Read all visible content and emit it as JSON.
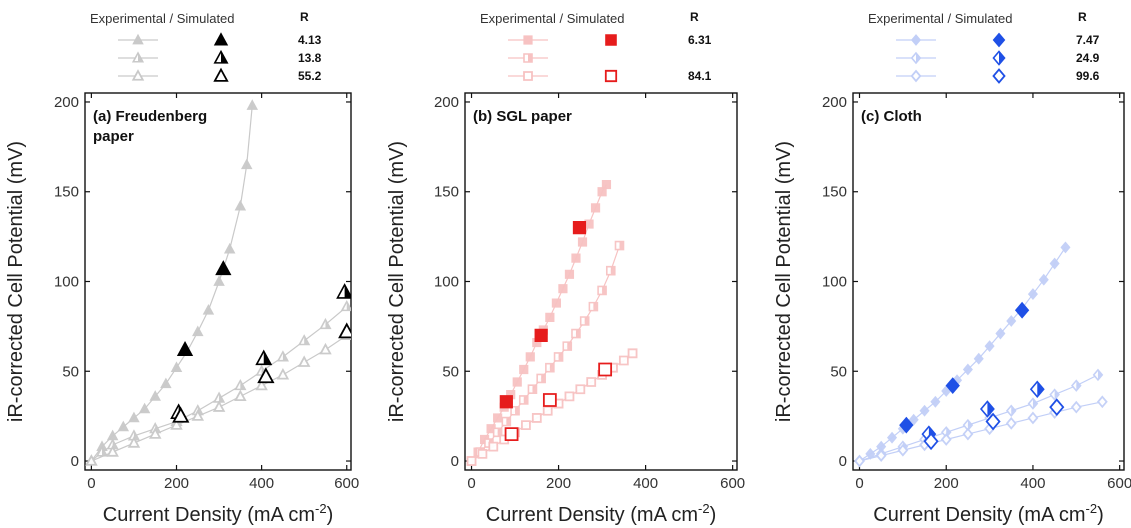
{
  "chart_data": [
    {
      "type": "scatter",
      "title": "(a) Freudenberg",
      "title_line2": "paper",
      "xlabel": "Current Density (mA cm",
      "xlabel_sup": "-2",
      "xlabel_close": ")",
      "ylabel": "iR-corrected Cell Potential (mV)",
      "xlim": [
        -15,
        610
      ],
      "ylim": [
        -5,
        205
      ],
      "xticks": [
        0,
        200,
        400,
        600
      ],
      "yticks": [
        0,
        50,
        100,
        150,
        200
      ],
      "marker": "triangle",
      "color": "#000000",
      "light_color": "#c9c9c9",
      "legend_title": "Experimental / Simulated",
      "legend_head": "R",
      "series": [
        {
          "legend_value": "4.13",
          "fill": "full",
          "experimental": {
            "x": [
              0,
              25,
              50,
              75,
              100,
              125,
              150,
              175,
              200,
              225,
              250,
              275,
              300,
              325,
              350,
              365,
              378
            ],
            "y": [
              0,
              8,
              14,
              19,
              24,
              29,
              36,
              43,
              52,
              61,
              72,
              84,
              100,
              118,
              142,
              165,
              198
            ]
          },
          "simulated": {
            "x": [
              220,
              310
            ],
            "y": [
              62,
              107
            ]
          }
        },
        {
          "legend_value": "13.8",
          "fill": "half",
          "experimental": {
            "x": [
              0,
              25,
              50,
              100,
              150,
              200,
              250,
              300,
              350,
              400,
              450,
              500,
              550,
              600
            ],
            "y": [
              0,
              5,
              9,
              14,
              18,
              22,
              28,
              35,
              42,
              50,
              58,
              67,
              76,
              86
            ]
          },
          "simulated": {
            "x": [
              205,
              405,
              595
            ],
            "y": [
              27,
              57,
              94
            ]
          }
        },
        {
          "legend_value": "55.2",
          "fill": "open",
          "experimental": {
            "x": [
              0,
              50,
              100,
              150,
              200,
              250,
              300,
              350,
              400,
              450,
              500,
              550,
              600
            ],
            "y": [
              0,
              5,
              10,
              15,
              20,
              25,
              30,
              36,
              42,
              48,
              55,
              62,
              70
            ]
          },
          "simulated": {
            "x": [
              210,
              410,
              600
            ],
            "y": [
              25,
              47,
              72
            ]
          }
        }
      ]
    },
    {
      "type": "scatter",
      "title": "(b) SGL paper",
      "title_line2": "",
      "xlabel": "Current Density (mA cm",
      "xlabel_sup": "-2",
      "xlabel_close": ")",
      "ylabel": "iR-corrected Cell Potential (mV)",
      "xlim": [
        -15,
        610
      ],
      "ylim": [
        -5,
        205
      ],
      "xticks": [
        0,
        200,
        400,
        600
      ],
      "yticks": [
        0,
        50,
        100,
        150,
        200
      ],
      "marker": "square",
      "color": "#e61c1c",
      "light_color": "#f7c2c2",
      "legend_title": "Experimental / Simulated",
      "legend_head": "R",
      "series": [
        {
          "legend_value": "6.31",
          "fill": "full",
          "experimental": {
            "x": [
              0,
              15,
              30,
              45,
              60,
              75,
              90,
              105,
              120,
              135,
              150,
              165,
              180,
              195,
              210,
              225,
              240,
              255,
              270,
              285,
              300,
              310
            ],
            "y": [
              0,
              5,
              12,
              18,
              24,
              30,
              37,
              44,
              51,
              58,
              66,
              73,
              80,
              88,
              96,
              104,
              113,
              122,
              132,
              141,
              150,
              154
            ]
          },
          "simulated": {
            "x": [
              80,
              160,
              248
            ],
            "y": [
              33,
              70,
              130
            ]
          }
        },
        {
          "legend_value": "",
          "fill": "half",
          "experimental": {
            "x": [
              0,
              20,
              40,
              60,
              80,
              100,
              120,
              140,
              160,
              180,
              200,
              220,
              240,
              260,
              280,
              300,
              320,
              340
            ],
            "y": [
              0,
              5,
              10,
              16,
              22,
              28,
              34,
              40,
              46,
              52,
              58,
              64,
              71,
              78,
              86,
              95,
              106,
              120
            ]
          },
          "simulated": {
            "x": [],
            "y": []
          }
        },
        {
          "legend_value": "84.1",
          "fill": "open",
          "experimental": {
            "x": [
              0,
              25,
              50,
              75,
              100,
              125,
              150,
              175,
              200,
              225,
              250,
              275,
              300,
              325,
              350,
              370
            ],
            "y": [
              0,
              4,
              8,
              12,
              16,
              20,
              24,
              28,
              32,
              36,
              40,
              44,
              48,
              52,
              56,
              60
            ]
          },
          "simulated": {
            "x": [
              92,
              180,
              307
            ],
            "y": [
              15,
              34,
              51
            ]
          }
        }
      ]
    },
    {
      "type": "scatter",
      "title": "(c) Cloth",
      "title_line2": "",
      "xlabel": "Current Density (mA cm",
      "xlabel_sup": "-2",
      "xlabel_close": ")",
      "ylabel": "iR-corrected Cell Potential (mV)",
      "xlim": [
        -15,
        610
      ],
      "ylim": [
        -5,
        205
      ],
      "xticks": [
        0,
        200,
        400,
        600
      ],
      "yticks": [
        0,
        50,
        100,
        150,
        200
      ],
      "marker": "diamond",
      "color": "#1f50e6",
      "light_color": "#c2cff7",
      "legend_title": "Experimental / Simulated",
      "legend_head": "R",
      "series": [
        {
          "legend_value": "7.47",
          "fill": "full",
          "experimental": {
            "x": [
              0,
              25,
              50,
              75,
              100,
              125,
              150,
              175,
              200,
              225,
              250,
              275,
              300,
              325,
              350,
              375,
              400,
              425,
              450,
              475
            ],
            "y": [
              0,
              4,
              8,
              13,
              18,
              23,
              28,
              33,
              39,
              45,
              51,
              57,
              64,
              71,
              78,
              85,
              93,
              101,
              110,
              119
            ]
          },
          "simulated": {
            "x": [
              108,
              215,
              375
            ],
            "y": [
              20,
              42,
              84
            ]
          }
        },
        {
          "legend_value": "24.9",
          "fill": "half",
          "experimental": {
            "x": [
              0,
              50,
              100,
              150,
              200,
              250,
              300,
              350,
              400,
              450,
              500,
              550
            ],
            "y": [
              0,
              4,
              8,
              12,
              16,
              20,
              24,
              28,
              32,
              37,
              42,
              48
            ]
          },
          "simulated": {
            "x": [
              160,
              295,
              410
            ],
            "y": [
              15,
              29,
              40
            ]
          }
        },
        {
          "legend_value": "99.6",
          "fill": "open",
          "experimental": {
            "x": [
              0,
              50,
              100,
              150,
              200,
              250,
              300,
              350,
              400,
              450,
              500,
              560
            ],
            "y": [
              0,
              3,
              6,
              9,
              12,
              15,
              18,
              21,
              24,
              27,
              30,
              33
            ]
          },
          "simulated": {
            "x": [
              165,
              308,
              455
            ],
            "y": [
              11,
              22,
              30
            ]
          }
        }
      ]
    }
  ]
}
